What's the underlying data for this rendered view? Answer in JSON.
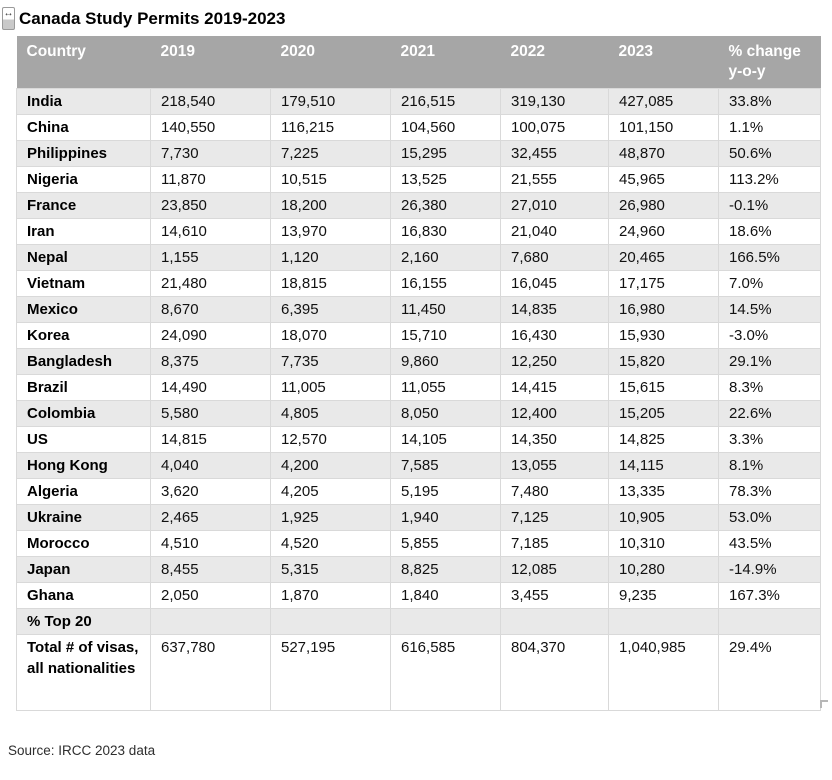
{
  "title": "Canada Study Permits 2019-2023",
  "source": "Source: IRCC 2023 data",
  "icons": {
    "move_handle_glyph": "↔"
  },
  "colors": {
    "header-bg": "#a6a6a6",
    "header-text": "#ffffff",
    "stripe": "#e9e9e9",
    "grid-line": "#d9d9d9"
  },
  "table": {
    "columns": [
      "Country",
      "2019",
      "2020",
      "2021",
      "2022",
      "2023",
      "% change y-o-y"
    ],
    "rows": [
      {
        "cells": [
          "India",
          "218,540",
          "179,510",
          "216,515",
          "319,130",
          "427,085",
          "33.8%"
        ]
      },
      {
        "cells": [
          "China",
          "140,550",
          "116,215",
          "104,560",
          "100,075",
          "101,150",
          "1.1%"
        ]
      },
      {
        "cells": [
          "Philippines",
          "7,730",
          "7,225",
          "15,295",
          "32,455",
          "48,870",
          "50.6%"
        ]
      },
      {
        "cells": [
          "Nigeria",
          "11,870",
          "10,515",
          "13,525",
          "21,555",
          "45,965",
          "113.2%"
        ]
      },
      {
        "cells": [
          "France",
          "23,850",
          "18,200",
          "26,380",
          "27,010",
          "26,980",
          "-0.1%"
        ]
      },
      {
        "cells": [
          "Iran",
          "14,610",
          "13,970",
          "16,830",
          "21,040",
          "24,960",
          "18.6%"
        ]
      },
      {
        "cells": [
          "Nepal",
          "1,155",
          "1,120",
          "2,160",
          "7,680",
          "20,465",
          "166.5%"
        ]
      },
      {
        "cells": [
          "Vietnam",
          "21,480",
          "18,815",
          "16,155",
          "16,045",
          "17,175",
          "7.0%"
        ]
      },
      {
        "cells": [
          "Mexico",
          "8,670",
          "6,395",
          "11,450",
          "14,835",
          "16,980",
          "14.5%"
        ]
      },
      {
        "cells": [
          "Korea",
          "24,090",
          "18,070",
          "15,710",
          "16,430",
          "15,930",
          "-3.0%"
        ]
      },
      {
        "cells": [
          "Bangladesh",
          "8,375",
          "7,735",
          "9,860",
          "12,250",
          "15,820",
          "29.1%"
        ]
      },
      {
        "cells": [
          "Brazil",
          "14,490",
          "11,005",
          "11,055",
          "14,415",
          "15,615",
          "8.3%"
        ]
      },
      {
        "cells": [
          "Colombia",
          "5,580",
          "4,805",
          "8,050",
          "12,400",
          "15,205",
          "22.6%"
        ]
      },
      {
        "cells": [
          "US",
          "14,815",
          "12,570",
          "14,105",
          "14,350",
          "14,825",
          "3.3%"
        ]
      },
      {
        "cells": [
          "Hong Kong",
          "4,040",
          "4,200",
          "7,585",
          "13,055",
          "14,115",
          "8.1%"
        ]
      },
      {
        "cells": [
          "Algeria",
          "3,620",
          "4,205",
          "5,195",
          "7,480",
          "13,335",
          "78.3%"
        ]
      },
      {
        "cells": [
          "Ukraine",
          "2,465",
          "1,925",
          "1,940",
          "7,125",
          "10,905",
          "53.0%"
        ]
      },
      {
        "cells": [
          "Morocco",
          "4,510",
          "4,520",
          "5,855",
          "7,185",
          "10,310",
          "43.5%"
        ]
      },
      {
        "cells": [
          "Japan",
          "8,455",
          "5,315",
          "8,825",
          "12,085",
          "10,280",
          "-14.9%"
        ]
      },
      {
        "cells": [
          "Ghana",
          "2,050",
          "1,870",
          "1,840",
          "3,455",
          "9,235",
          "167.3%"
        ]
      },
      {
        "cells": [
          "% Top 20",
          "",
          "",
          "",
          "",
          "",
          ""
        ]
      },
      {
        "cells": [
          "Total # of visas, all nationalities",
          "637,780",
          "527,195",
          "616,585",
          "804,370",
          "1,040,985",
          "29.4%"
        ]
      }
    ]
  },
  "chart_data": {
    "type": "table",
    "title": "Canada Study Permits 2019-2023",
    "columns": [
      "Country",
      "2019",
      "2020",
      "2021",
      "2022",
      "2023",
      "% change y-o-y"
    ],
    "x": [
      2019,
      2020,
      2021,
      2022,
      2023
    ],
    "series": [
      {
        "name": "India",
        "values": [
          218540,
          179510,
          216515,
          319130,
          427085
        ],
        "pct_change_yoy": 33.8
      },
      {
        "name": "China",
        "values": [
          140550,
          116215,
          104560,
          100075,
          101150
        ],
        "pct_change_yoy": 1.1
      },
      {
        "name": "Philippines",
        "values": [
          7730,
          7225,
          15295,
          32455,
          48870
        ],
        "pct_change_yoy": 50.6
      },
      {
        "name": "Nigeria",
        "values": [
          11870,
          10515,
          13525,
          21555,
          45965
        ],
        "pct_change_yoy": 113.2
      },
      {
        "name": "France",
        "values": [
          23850,
          18200,
          26380,
          27010,
          26980
        ],
        "pct_change_yoy": -0.1
      },
      {
        "name": "Iran",
        "values": [
          14610,
          13970,
          16830,
          21040,
          24960
        ],
        "pct_change_yoy": 18.6
      },
      {
        "name": "Nepal",
        "values": [
          1155,
          1120,
          2160,
          7680,
          20465
        ],
        "pct_change_yoy": 166.5
      },
      {
        "name": "Vietnam",
        "values": [
          21480,
          18815,
          16155,
          16045,
          17175
        ],
        "pct_change_yoy": 7.0
      },
      {
        "name": "Mexico",
        "values": [
          8670,
          6395,
          11450,
          14835,
          16980
        ],
        "pct_change_yoy": 14.5
      },
      {
        "name": "Korea",
        "values": [
          24090,
          18070,
          15710,
          16430,
          15930
        ],
        "pct_change_yoy": -3.0
      },
      {
        "name": "Bangladesh",
        "values": [
          8375,
          7735,
          9860,
          12250,
          15820
        ],
        "pct_change_yoy": 29.1
      },
      {
        "name": "Brazil",
        "values": [
          14490,
          11005,
          11055,
          14415,
          15615
        ],
        "pct_change_yoy": 8.3
      },
      {
        "name": "Colombia",
        "values": [
          5580,
          4805,
          8050,
          12400,
          15205
        ],
        "pct_change_yoy": 22.6
      },
      {
        "name": "US",
        "values": [
          14815,
          12570,
          14105,
          14350,
          14825
        ],
        "pct_change_yoy": 3.3
      },
      {
        "name": "Hong Kong",
        "values": [
          4040,
          4200,
          7585,
          13055,
          14115
        ],
        "pct_change_yoy": 8.1
      },
      {
        "name": "Algeria",
        "values": [
          3620,
          4205,
          5195,
          7480,
          13335
        ],
        "pct_change_yoy": 78.3
      },
      {
        "name": "Ukraine",
        "values": [
          2465,
          1925,
          1940,
          7125,
          10905
        ],
        "pct_change_yoy": 53.0
      },
      {
        "name": "Morocco",
        "values": [
          4510,
          4520,
          5855,
          7185,
          10310
        ],
        "pct_change_yoy": 43.5
      },
      {
        "name": "Japan",
        "values": [
          8455,
          5315,
          8825,
          12085,
          10280
        ],
        "pct_change_yoy": -14.9
      },
      {
        "name": "Ghana",
        "values": [
          2050,
          1870,
          1840,
          3455,
          9235
        ],
        "pct_change_yoy": 167.3
      },
      {
        "name": "% Top 20",
        "values": [
          null,
          null,
          null,
          null,
          null
        ],
        "pct_change_yoy": null
      },
      {
        "name": "Total # of visas, all nationalities",
        "values": [
          637780,
          527195,
          616585,
          804370,
          1040985
        ],
        "pct_change_yoy": 29.4
      }
    ],
    "source": "Source: IRCC 2023 data"
  }
}
